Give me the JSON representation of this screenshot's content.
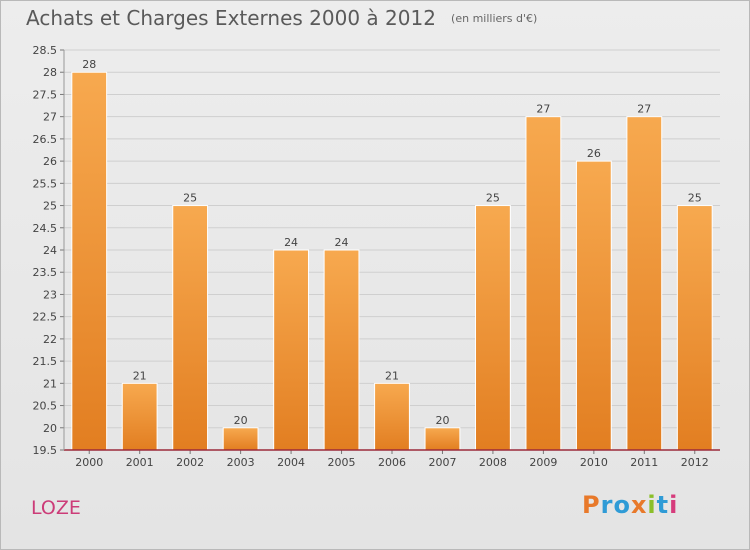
{
  "header": {
    "title": "Achats et Charges Externes 2000 à 2012",
    "subtitle": "(en milliers d'€)"
  },
  "footer": {
    "town": "LOZE",
    "logo_text": "Proxiti",
    "logo_colors": [
      "#e8792a",
      "#2f9bd6",
      "#2f9bd6",
      "#e8792a",
      "#8bbf2a",
      "#2f9bd6",
      "#d63c7c"
    ]
  },
  "colors": {
    "bar_light": "#f7a94f",
    "bar_dark": "#e27e21",
    "axis_line": "#9c2a3a",
    "grid": "#cfcfcf"
  },
  "chart_data": {
    "type": "bar",
    "title": "Achats et Charges Externes 2000 à 2012",
    "subtitle": "(en milliers d'€)",
    "categories": [
      "2000",
      "2001",
      "2002",
      "2003",
      "2004",
      "2005",
      "2006",
      "2007",
      "2008",
      "2009",
      "2010",
      "2011",
      "2012"
    ],
    "values": [
      28,
      21,
      25,
      20,
      24,
      24,
      21,
      20,
      25,
      27,
      26,
      27,
      25
    ],
    "data_labels": [
      "28",
      "21",
      "25",
      "20",
      "24",
      "24",
      "21",
      "20",
      "25",
      "27",
      "26",
      "27",
      "25"
    ],
    "ylim": [
      19.5,
      28.5
    ],
    "yticks": [
      "19.5",
      "20",
      "20.5",
      "21",
      "21.5",
      "22",
      "22.5",
      "23",
      "23.5",
      "24",
      "24.5",
      "25",
      "25.5",
      "26",
      "26.5",
      "27",
      "27.5",
      "28",
      "28.5"
    ],
    "xlabel": "",
    "ylabel": "",
    "grid": true,
    "legend": "none"
  }
}
